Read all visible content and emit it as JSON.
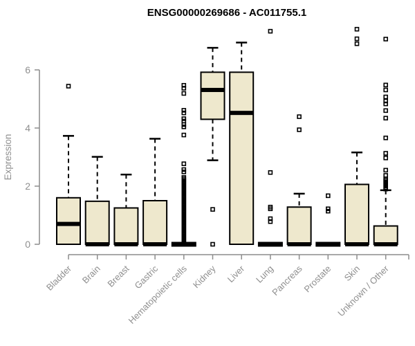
{
  "chart_data": {
    "type": "boxplot",
    "title": "ENSG00000269686 - AC011755.1",
    "ylabel": "Expression",
    "xlabel": "",
    "yticks": [
      0,
      2,
      4,
      6
    ],
    "ylim": [
      0,
      7.5
    ],
    "grid": false,
    "legend": "none",
    "colors": {
      "box_fill": "#EEE8CD",
      "box_border": "#000000",
      "median": "#000000",
      "axis": "#8C8C8C",
      "axis_text": "#8F8F8F",
      "title_text": "#000000",
      "background": "#FFFFFF"
    },
    "categories": [
      "Bladder",
      "Brain",
      "Breast",
      "Gastric",
      "Hematopoietic cells",
      "Kidney",
      "Liver",
      "Lung",
      "Pancreas",
      "Prostate",
      "Skin",
      "Unknown / Other"
    ],
    "series": [
      {
        "name": "Bladder",
        "whisker_low": 0,
        "q1": 0,
        "median": 0.7,
        "q3": 1.6,
        "whisker_high": 3.73,
        "outliers": [
          5.44
        ]
      },
      {
        "name": "Brain",
        "whisker_low": 0,
        "q1": 0,
        "median": 0,
        "q3": 1.48,
        "whisker_high": 3.01,
        "outliers": []
      },
      {
        "name": "Breast",
        "whisker_low": 0,
        "q1": 0,
        "median": 0,
        "q3": 1.25,
        "whisker_high": 2.4,
        "outliers": []
      },
      {
        "name": "Gastric",
        "whisker_low": 0,
        "q1": 0,
        "median": 0,
        "q3": 1.5,
        "whisker_high": 3.63,
        "outliers": []
      },
      {
        "name": "Hematopoietic cells",
        "whisker_low": 0,
        "q1": 0,
        "median": 0,
        "q3": 0,
        "whisker_high": 0,
        "outliers": [
          0.05,
          0.1,
          0.15,
          0.2,
          0.25,
          0.3,
          0.35,
          0.4,
          0.45,
          0.5,
          0.55,
          0.6,
          0.65,
          0.7,
          0.75,
          0.8,
          0.85,
          0.9,
          0.95,
          1.0,
          1.05,
          1.1,
          1.15,
          1.2,
          1.25,
          1.3,
          1.35,
          1.4,
          1.45,
          1.5,
          1.55,
          1.6,
          1.65,
          1.7,
          1.75,
          1.8,
          1.85,
          1.9,
          1.95,
          2.0,
          2.05,
          2.1,
          2.15,
          2.2,
          2.25,
          2.3,
          2.49,
          2.57,
          2.77,
          3.76,
          4.04,
          4.12,
          4.24,
          4.32,
          4.52,
          4.61,
          5.19,
          5.37,
          5.47
        ]
      },
      {
        "name": "Kidney",
        "whisker_low": 2.89,
        "q1": 4.3,
        "median": 5.31,
        "q3": 5.92,
        "whisker_high": 6.76,
        "outliers": [
          0,
          1.2
        ]
      },
      {
        "name": "Liver",
        "whisker_low": 0,
        "q1": 0,
        "median": 4.52,
        "q3": 5.92,
        "whisker_high": 6.94,
        "outliers": []
      },
      {
        "name": "Lung",
        "whisker_low": 0,
        "q1": 0,
        "median": 0,
        "q3": 0,
        "whisker_high": 0,
        "outliers": [
          0.78,
          0.88,
          1.22,
          1.28,
          2.47,
          7.33
        ]
      },
      {
        "name": "Pancreas",
        "whisker_low": 0,
        "q1": 0,
        "median": 0,
        "q3": 1.28,
        "whisker_high": 1.74,
        "outliers": [
          3.94,
          4.39
        ]
      },
      {
        "name": "Prostate",
        "whisker_low": 0,
        "q1": 0,
        "median": 0,
        "q3": 0,
        "whisker_high": 0,
        "outliers": [
          1.14,
          1.22,
          1.67
        ]
      },
      {
        "name": "Skin",
        "whisker_low": 0,
        "q1": 0,
        "median": 0,
        "q3": 2.06,
        "whisker_high": 3.16,
        "outliers": [
          6.9,
          7.07,
          7.4
        ]
      },
      {
        "name": "Unknown / Other",
        "whisker_low": 0,
        "q1": 0,
        "median": 0,
        "q3": 0.63,
        "whisker_high": 1.86,
        "outliers": [
          1.9,
          1.95,
          2.0,
          2.05,
          2.1,
          2.15,
          2.2,
          2.25,
          2.37,
          2.55,
          2.97,
          3.13,
          3.66,
          4.34,
          4.6,
          4.83,
          4.93,
          5.07,
          5.31,
          5.48,
          7.06
        ]
      }
    ]
  }
}
